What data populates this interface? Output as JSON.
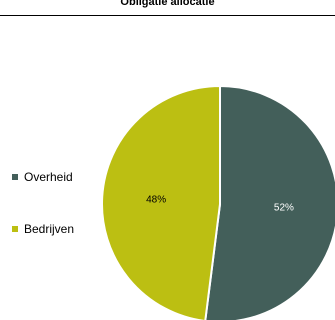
{
  "chart_data": {
    "type": "pie",
    "title": "Obligatie allocatie",
    "categories": [
      "Overheid",
      "Bedrijven"
    ],
    "values": [
      52,
      48
    ],
    "labels": [
      "52%",
      "48%"
    ],
    "colors": [
      "#435f5a",
      "#bcbf12"
    ],
    "label_colors": [
      "#ffffff",
      "#000000"
    ],
    "legend": {
      "position": "left",
      "entries": [
        "Overheid",
        "Bedrijven"
      ]
    }
  }
}
